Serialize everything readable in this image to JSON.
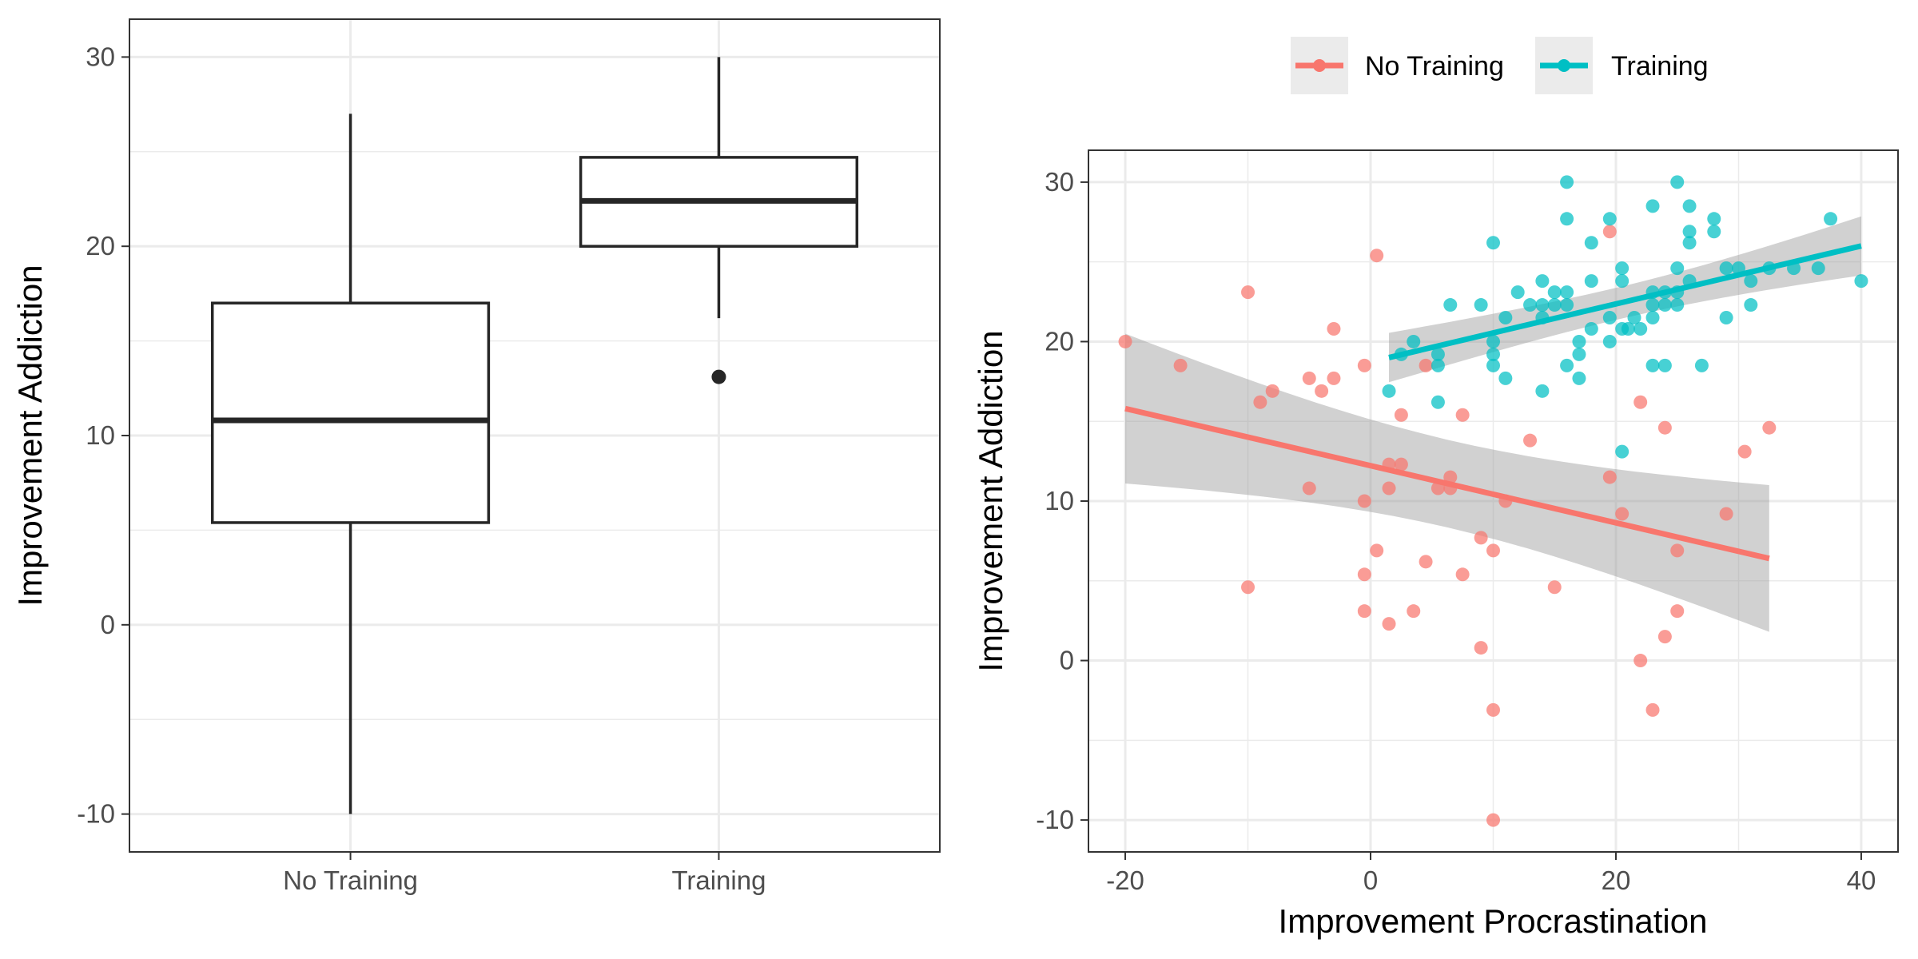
{
  "colors": {
    "no_training": "#F8766D",
    "training": "#00BFC4",
    "ribbon": "#999999",
    "box": "#262626"
  },
  "legend": {
    "items": [
      {
        "label": "No Training",
        "color": "#F8766D"
      },
      {
        "label": "Training",
        "color": "#00BFC4"
      }
    ]
  },
  "chart_data": [
    {
      "type": "boxplot",
      "xlabel": "",
      "ylabel": "Improvement Addiction",
      "ylim": [
        -12,
        32
      ],
      "yticks": [
        -10,
        0,
        10,
        20,
        30
      ],
      "grid": true,
      "categories": [
        "No Training",
        "Training"
      ],
      "boxes": [
        {
          "category": "No Training",
          "min": -10,
          "q1": 5.4,
          "median": 10.8,
          "q3": 17,
          "max": 27,
          "outliers": []
        },
        {
          "category": "Training",
          "min": 16.2,
          "q1": 20,
          "median": 22.4,
          "q3": 24.7,
          "max": 30,
          "outliers": [
            13.1
          ]
        }
      ]
    },
    {
      "type": "scatter",
      "xlabel": "Improvement Procrastination",
      "ylabel": "Improvement Addiction",
      "xlim": [
        -23,
        43
      ],
      "ylim": [
        -12,
        32
      ],
      "xticks": [
        -20,
        0,
        20,
        40
      ],
      "yticks": [
        -10,
        0,
        10,
        20,
        30
      ],
      "grid": true,
      "legend_position": "top",
      "series": [
        {
          "name": "No Training",
          "color": "#F8766D",
          "points": [
            [
              -20,
              20
            ],
            [
              -15.5,
              18.5
            ],
            [
              -10,
              23.1
            ],
            [
              -9,
              16.2
            ],
            [
              -8,
              16.9
            ],
            [
              -5,
              17.7
            ],
            [
              -5,
              10.8
            ],
            [
              -4,
              16.9
            ],
            [
              -3,
              20.8
            ],
            [
              -3,
              17.7
            ],
            [
              -0.5,
              18.5
            ],
            [
              0.5,
              25.4
            ],
            [
              -0.5,
              10
            ],
            [
              -0.5,
              5.4
            ],
            [
              0.5,
              6.9
            ],
            [
              -0.5,
              3.1
            ],
            [
              1.5,
              12.3
            ],
            [
              1.5,
              10.8
            ],
            [
              2.5,
              12.3
            ],
            [
              2.5,
              15.4
            ],
            [
              1.5,
              2.3
            ],
            [
              3.5,
              3.1
            ],
            [
              4.5,
              18.5
            ],
            [
              5.5,
              10.8
            ],
            [
              6.5,
              10.8
            ],
            [
              6.5,
              11.5
            ],
            [
              4.5,
              6.2
            ],
            [
              7.5,
              15.4
            ],
            [
              7.5,
              5.4
            ],
            [
              9,
              7.7
            ],
            [
              10,
              6.9
            ],
            [
              9,
              0.8
            ],
            [
              10,
              -3.1
            ],
            [
              10,
              -10
            ],
            [
              11,
              10
            ],
            [
              13,
              13.8
            ],
            [
              15,
              4.6
            ],
            [
              19.5,
              26.9
            ],
            [
              19.5,
              11.5
            ],
            [
              20.5,
              9.2
            ],
            [
              22,
              16.2
            ],
            [
              22,
              0
            ],
            [
              23,
              -3.1
            ],
            [
              24,
              14.6
            ],
            [
              25,
              6.9
            ],
            [
              25,
              3.1
            ],
            [
              24,
              1.5
            ],
            [
              29,
              9.2
            ],
            [
              30.5,
              13.1
            ],
            [
              32.5,
              14.6
            ],
            [
              -10,
              4.6
            ]
          ],
          "fit": {
            "x": [
              -20,
              32.5
            ],
            "y": [
              15.8,
              6.4
            ],
            "ci_lower": [
              11.1,
              1.8
            ],
            "ci_upper": [
              20.5,
              11.0
            ]
          }
        },
        {
          "name": "Training",
          "color": "#00BFC4",
          "points": [
            [
              1.5,
              16.9
            ],
            [
              2.5,
              19.2
            ],
            [
              3.5,
              20
            ],
            [
              5.5,
              19.2
            ],
            [
              5.5,
              18.5
            ],
            [
              5.5,
              16.2
            ],
            [
              6.5,
              22.3
            ],
            [
              9,
              22.3
            ],
            [
              10,
              26.2
            ],
            [
              10,
              20
            ],
            [
              10,
              19.2
            ],
            [
              10,
              18.5
            ],
            [
              11,
              21.5
            ],
            [
              11,
              17.7
            ],
            [
              12,
              23.1
            ],
            [
              13,
              22.3
            ],
            [
              14,
              23.8
            ],
            [
              14,
              22.3
            ],
            [
              14,
              21.5
            ],
            [
              14,
              16.9
            ],
            [
              15,
              23.1
            ],
            [
              15,
              22.3
            ],
            [
              16,
              30
            ],
            [
              16,
              27.7
            ],
            [
              16,
              23.1
            ],
            [
              16,
              22.3
            ],
            [
              16,
              18.5
            ],
            [
              17,
              20
            ],
            [
              17,
              19.2
            ],
            [
              17,
              17.7
            ],
            [
              18,
              26.2
            ],
            [
              18,
              23.8
            ],
            [
              18,
              20.8
            ],
            [
              19.5,
              27.7
            ],
            [
              19.5,
              21.5
            ],
            [
              19.5,
              20
            ],
            [
              20.5,
              24.6
            ],
            [
              20.5,
              23.8
            ],
            [
              20.5,
              20.8
            ],
            [
              21,
              20.8
            ],
            [
              20.5,
              13.1
            ],
            [
              21.5,
              21.5
            ],
            [
              22,
              20.8
            ],
            [
              23,
              28.5
            ],
            [
              23,
              23.1
            ],
            [
              23,
              22.3
            ],
            [
              23,
              21.5
            ],
            [
              23,
              18.5
            ],
            [
              24,
              23.1
            ],
            [
              24,
              22.3
            ],
            [
              24,
              18.5
            ],
            [
              25,
              30
            ],
            [
              25,
              24.6
            ],
            [
              25,
              23.1
            ],
            [
              25,
              22.3
            ],
            [
              26,
              28.5
            ],
            [
              26,
              26.9
            ],
            [
              26,
              26.2
            ],
            [
              26,
              23.8
            ],
            [
              27,
              18.5
            ],
            [
              28,
              27.7
            ],
            [
              28,
              26.9
            ],
            [
              29,
              24.6
            ],
            [
              29,
              21.5
            ],
            [
              30,
              24.6
            ],
            [
              31,
              23.8
            ],
            [
              31,
              22.3
            ],
            [
              32.5,
              24.6
            ],
            [
              34.5,
              24.6
            ],
            [
              36.5,
              24.6
            ],
            [
              37.5,
              27.7
            ],
            [
              40,
              23.8
            ]
          ],
          "fit": {
            "x": [
              1.5,
              40
            ],
            "y": [
              19.0,
              26.0
            ],
            "ci_lower": [
              17.5,
              24.2
            ],
            "ci_upper": [
              20.6,
              27.9
            ]
          }
        }
      ]
    }
  ]
}
